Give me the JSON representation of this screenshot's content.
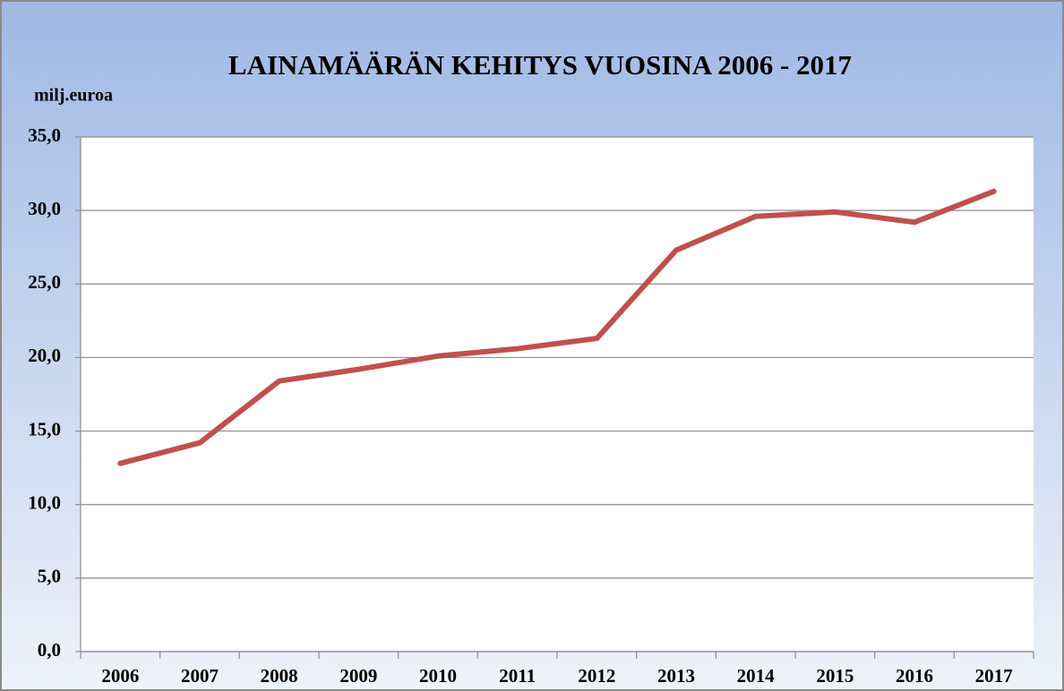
{
  "chart_data": {
    "type": "line",
    "title": "LAINAMÄÄRÄN  KEHITYS VUOSINA 2006 - 2017",
    "y_label": "milj.euroa",
    "categories": [
      "2006",
      "2007",
      "2008",
      "2009",
      "2010",
      "2011",
      "2012",
      "2013",
      "2014",
      "2015",
      "2016",
      "2017"
    ],
    "values": [
      12.8,
      14.2,
      18.4,
      19.2,
      20.1,
      20.6,
      21.3,
      27.3,
      29.6,
      29.9,
      29.2,
      31.3
    ],
    "color": "#c0504d",
    "ylim": [
      0,
      35
    ],
    "yticks": [
      {
        "value": 0,
        "label": "0,0"
      },
      {
        "value": 5,
        "label": "5,0"
      },
      {
        "value": 10,
        "label": "10,0"
      },
      {
        "value": 15,
        "label": "15,0"
      },
      {
        "value": 20,
        "label": "20,0"
      },
      {
        "value": 25,
        "label": "25,0"
      },
      {
        "value": 30,
        "label": "30,0"
      },
      {
        "value": 35,
        "label": "35,0"
      }
    ],
    "grid": true
  }
}
